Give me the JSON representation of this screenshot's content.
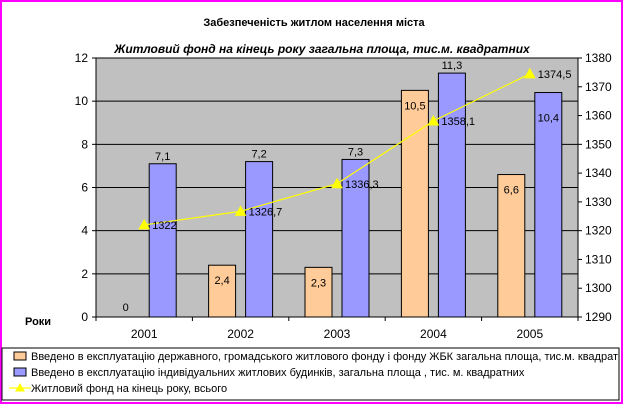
{
  "chart_data": {
    "type": "bar",
    "title": "Забезпеченість житлом населення міста",
    "subtitle": "Житловий фонд на кінець року загальна площа, тис.м. квадратних",
    "xlabel": "Роки",
    "categories": [
      "2001",
      "2002",
      "2003",
      "2004",
      "2005"
    ],
    "ylim_left": [
      0,
      12
    ],
    "yticks_left": [
      "0",
      "2",
      "4",
      "6",
      "8",
      "10",
      "12"
    ],
    "ylim_right": [
      1290,
      1380
    ],
    "yticks_right": [
      "1290",
      "1300",
      "1310",
      "1320",
      "1330",
      "1340",
      "1350",
      "1360",
      "1370",
      "1380"
    ],
    "grid": true,
    "legend_position": "bottom",
    "series": [
      {
        "name": "Введено в експлуатацію державного, громадського житлового фонду і фонду ЖБК загальна площа, тис.м. квадратних",
        "type": "bar",
        "axis": "left",
        "color": "#ffcc99",
        "values": [
          0,
          2.4,
          2.3,
          10.5,
          6.6
        ],
        "labels": [
          "0",
          "2,4",
          "2,3",
          "10,5",
          "6,6"
        ]
      },
      {
        "name": "Введено в експлуатацію індивідуальних житлових будинків, загальна площа , тис. м. квадратних",
        "type": "bar",
        "axis": "left",
        "color": "#9999ff",
        "values": [
          7.1,
          7.2,
          7.3,
          11.3,
          10.4
        ],
        "labels": [
          "7,1",
          "7,2",
          "7,3",
          "11,3",
          "10,4"
        ]
      },
      {
        "name": "Житловий фонд на кінець року, всього",
        "type": "line",
        "axis": "right",
        "color": "#ffff00",
        "values": [
          1322,
          1326.7,
          1336.3,
          1358.1,
          1374.5
        ],
        "labels": [
          "1322",
          "1326,7",
          "1336,3",
          "1358,1",
          "1374,5"
        ]
      }
    ],
    "colors": {
      "plot_background": "#c0c0c0",
      "border": "#ff00ff"
    }
  }
}
